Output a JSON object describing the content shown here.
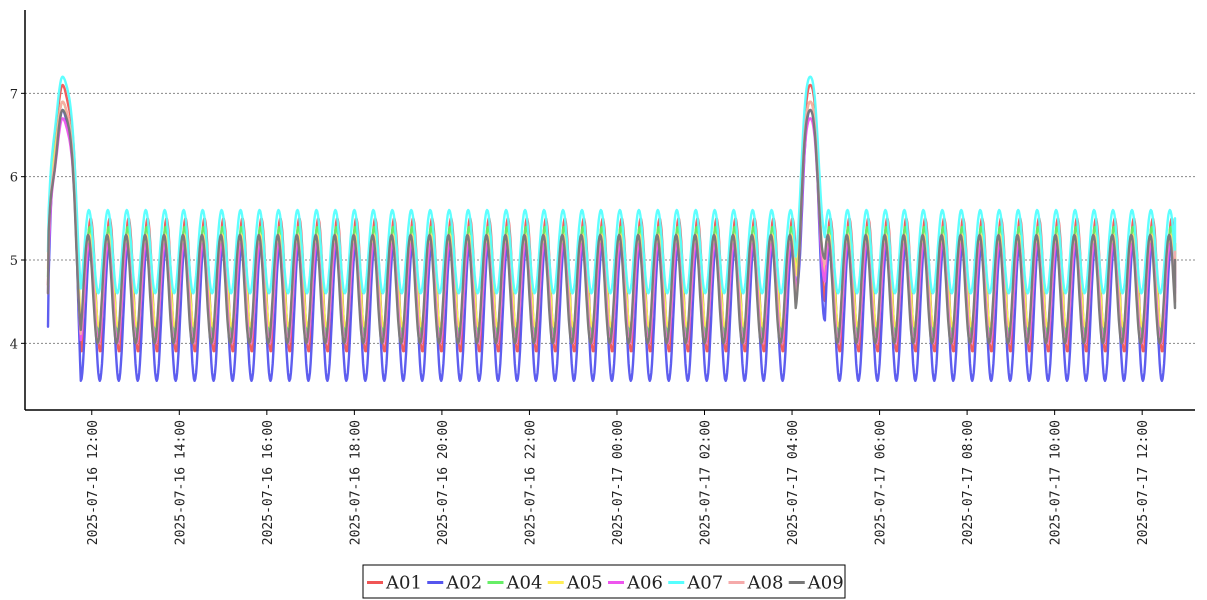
{
  "chart_data": {
    "type": "line",
    "title": "",
    "xlabel": "",
    "ylabel": "",
    "x_range": [
      "2025-07-16 11:00",
      "2025-07-17 12:45"
    ],
    "ylim": [
      3.2,
      8.0
    ],
    "y_ticks": [
      4,
      5,
      6,
      7
    ],
    "x_ticks": [
      "2025-07-16 12:00",
      "2025-07-16 14:00",
      "2025-07-16 16:00",
      "2025-07-16 18:00",
      "2025-07-16 20:00",
      "2025-07-16 22:00",
      "2025-07-17 00:00",
      "2025-07-17 02:00",
      "2025-07-17 04:00",
      "2025-07-17 06:00",
      "2025-07-17 08:00",
      "2025-07-17 10:00",
      "2025-07-17 12:00"
    ],
    "grid": "horizontal-dotted",
    "legend_position": "bottom-center",
    "cycle_minutes": 26,
    "peaks": [
      {
        "start": "2025-07-16 11:00",
        "peak": "2025-07-16 11:20",
        "end": "2025-07-16 11:45"
      },
      {
        "start": "2025-07-17 04:05",
        "peak": "2025-07-17 04:25",
        "end": "2025-07-17 04:45"
      }
    ],
    "series": [
      {
        "name": "A01",
        "color": "#f05555",
        "low": 3.9,
        "high": 5.5,
        "peak": 7.1,
        "start": 4.7,
        "end": 5.2
      },
      {
        "name": "A02",
        "color": "#5555ee",
        "low": 3.55,
        "high": 5.2,
        "peak": 6.8,
        "start": 4.2,
        "end": 4.9
      },
      {
        "name": "A04",
        "color": "#66ee66",
        "low": 4.1,
        "high": 5.4,
        "peak": 6.9,
        "start": 4.8,
        "end": 5.1
      },
      {
        "name": "A05",
        "color": "#ffee55",
        "low": 4.2,
        "high": 5.3,
        "peak": 6.9,
        "start": 4.9,
        "end": 5.2
      },
      {
        "name": "A06",
        "color": "#ee55ee",
        "low": 4.0,
        "high": 5.2,
        "peak": 6.7,
        "start": 4.6,
        "end": 5.0
      },
      {
        "name": "A07",
        "color": "#55ffff",
        "low": 4.6,
        "high": 5.6,
        "peak": 7.2,
        "start": 5.1,
        "end": 5.5
      },
      {
        "name": "A08",
        "color": "#f5aaaa",
        "low": 4.0,
        "high": 5.3,
        "peak": 6.9,
        "start": 4.7,
        "end": 5.1
      },
      {
        "name": "A09",
        "color": "#777777",
        "low": 4.0,
        "high": 5.3,
        "peak": 6.8,
        "start": 4.6,
        "end": 5.0
      }
    ]
  }
}
